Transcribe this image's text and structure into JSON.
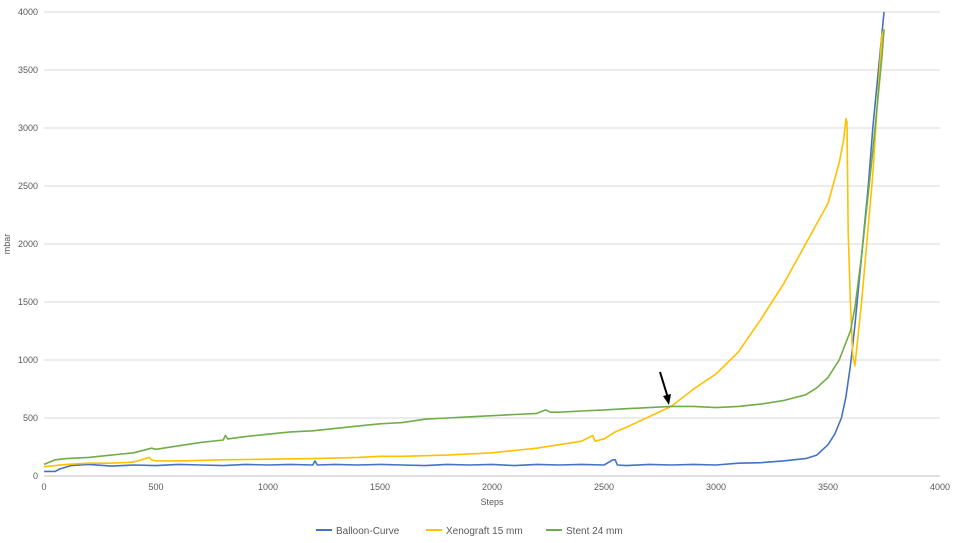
{
  "chart_data": {
    "type": "line",
    "title": "",
    "xlabel": "Steps",
    "ylabel": "mbar",
    "xlim": [
      0,
      4000
    ],
    "ylim": [
      0,
      4000
    ],
    "x_ticks": [
      "0",
      "500",
      "1000",
      "1500",
      "2000",
      "2500",
      "3000",
      "3500",
      "4000"
    ],
    "y_ticks": [
      "0",
      "500",
      "1000",
      "1500",
      "2000",
      "2500",
      "3000",
      "3500",
      "4000"
    ],
    "grid": "horizontal",
    "legend_position": "bottom",
    "series": [
      {
        "name": "Balloon-Curve",
        "color": "#4472c4",
        "x": [
          0,
          50,
          70,
          120,
          200,
          300,
          400,
          500,
          600,
          700,
          800,
          900,
          1000,
          1100,
          1200,
          1210,
          1220,
          1300,
          1400,
          1500,
          1600,
          1700,
          1800,
          1900,
          2000,
          2100,
          2200,
          2300,
          2400,
          2500,
          2540,
          2550,
          2560,
          2600,
          2700,
          2800,
          2900,
          3000,
          3100,
          3200,
          3300,
          3400,
          3450,
          3500,
          3530,
          3560,
          3580,
          3600,
          3620,
          3650,
          3680,
          3700,
          3720,
          3740,
          3750
        ],
        "y": [
          40,
          40,
          60,
          90,
          100,
          85,
          95,
          90,
          100,
          95,
          90,
          100,
          95,
          100,
          95,
          130,
          95,
          100,
          95,
          100,
          95,
          90,
          100,
          95,
          100,
          90,
          100,
          95,
          100,
          95,
          140,
          140,
          95,
          90,
          100,
          95,
          100,
          95,
          110,
          115,
          130,
          150,
          180,
          270,
          360,
          500,
          680,
          950,
          1300,
          1900,
          2500,
          3000,
          3400,
          3800,
          4000
        ]
      },
      {
        "name": "Xenograft 15 mm",
        "color": "#ffc000",
        "x": [
          0,
          100,
          200,
          300,
          400,
          470,
          480,
          500,
          600,
          800,
          1000,
          1200,
          1400,
          1500,
          1600,
          1800,
          2000,
          2100,
          2200,
          2300,
          2400,
          2450,
          2460,
          2500,
          2550,
          2600,
          2700,
          2800,
          2900,
          3000,
          3100,
          3200,
          3300,
          3400,
          3500,
          3550,
          3570,
          3580,
          3585,
          3590,
          3600,
          3610,
          3620,
          3650,
          3700,
          3740,
          3750
        ],
        "y": [
          80,
          100,
          110,
          110,
          120,
          160,
          140,
          130,
          130,
          140,
          145,
          150,
          160,
          170,
          170,
          180,
          200,
          220,
          240,
          270,
          300,
          350,
          300,
          320,
          380,
          420,
          510,
          600,
          750,
          880,
          1070,
          1350,
          1650,
          2000,
          2350,
          2700,
          2900,
          3080,
          3050,
          2100,
          1500,
          1050,
          950,
          1500,
          2600,
          3800,
          3850
        ]
      },
      {
        "name": "Stent 24 mm",
        "color": "#70ad47",
        "x": [
          0,
          50,
          100,
          200,
          300,
          400,
          480,
          500,
          600,
          700,
          800,
          810,
          820,
          900,
          1000,
          1100,
          1200,
          1300,
          1400,
          1500,
          1600,
          1700,
          1800,
          1900,
          2000,
          2100,
          2200,
          2240,
          2260,
          2300,
          2400,
          2500,
          2600,
          2700,
          2800,
          2900,
          3000,
          3100,
          3200,
          3300,
          3400,
          3450,
          3500,
          3550,
          3580,
          3600,
          3620,
          3650,
          3700,
          3740,
          3750
        ],
        "y": [
          100,
          140,
          150,
          160,
          180,
          200,
          240,
          230,
          260,
          290,
          310,
          350,
          320,
          340,
          360,
          380,
          390,
          410,
          430,
          450,
          460,
          490,
          500,
          510,
          520,
          530,
          540,
          570,
          550,
          550,
          560,
          570,
          580,
          590,
          600,
          600,
          590,
          600,
          620,
          650,
          700,
          760,
          850,
          1000,
          1150,
          1250,
          1450,
          1900,
          2800,
          3600,
          3850
        ]
      }
    ]
  }
}
